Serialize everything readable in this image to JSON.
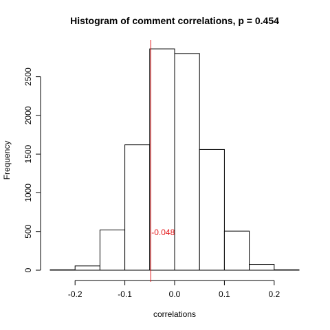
{
  "chart_data": {
    "type": "bar",
    "title": "Histogram of comment correlations, p = 0.454",
    "xlabel": "correlations",
    "ylabel": "Frequency",
    "xlim": [
      -0.25,
      0.25
    ],
    "ylim": [
      0,
      2900
    ],
    "bins": [
      {
        "x0": -0.25,
        "x1": -0.2,
        "count": 5
      },
      {
        "x0": -0.2,
        "x1": -0.15,
        "count": 55
      },
      {
        "x0": -0.15,
        "x1": -0.1,
        "count": 520
      },
      {
        "x0": -0.1,
        "x1": -0.05,
        "count": 1620
      },
      {
        "x0": -0.05,
        "x1": 0.0,
        "count": 2860
      },
      {
        "x0": 0.0,
        "x1": 0.05,
        "count": 2800
      },
      {
        "x0": 0.05,
        "x1": 0.1,
        "count": 1560
      },
      {
        "x0": 0.1,
        "x1": 0.15,
        "count": 505
      },
      {
        "x0": 0.15,
        "x1": 0.2,
        "count": 75
      },
      {
        "x0": 0.2,
        "x1": 0.25,
        "count": 5
      }
    ],
    "x_ticks": [
      {
        "value": -0.2,
        "label": "-0.2"
      },
      {
        "value": -0.1,
        "label": "-0.1"
      },
      {
        "value": 0.0,
        "label": "0.0"
      },
      {
        "value": 0.1,
        "label": "0.1"
      },
      {
        "value": 0.2,
        "label": "0.2"
      }
    ],
    "y_ticks": [
      {
        "value": 0,
        "label": "0"
      },
      {
        "value": 500,
        "label": "500"
      },
      {
        "value": 1000,
        "label": "1000"
      },
      {
        "value": 1500,
        "label": "1500"
      },
      {
        "value": 2000,
        "label": "2000"
      },
      {
        "value": 2500,
        "label": "2500"
      }
    ],
    "reference_line": {
      "value": -0.048,
      "label": "-0.048",
      "color": "#e41a1c"
    },
    "grid": false,
    "bar_fill": "#ffffff",
    "bar_stroke": "#000000"
  }
}
